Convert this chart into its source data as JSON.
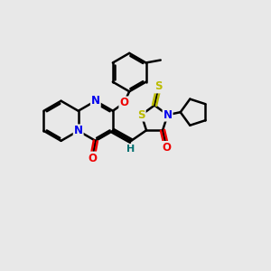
{
  "bg_color": "#e8e8e8",
  "bond_color": "#000000",
  "bond_width": 1.8,
  "atom_colors": {
    "N": "#0000ee",
    "O": "#ee0000",
    "S": "#bbbb00",
    "H": "#007070",
    "C": "#000000"
  },
  "xlim": [
    0,
    10
  ],
  "ylim": [
    0,
    10
  ],
  "figsize": [
    3.0,
    3.0
  ],
  "dpi": 100
}
